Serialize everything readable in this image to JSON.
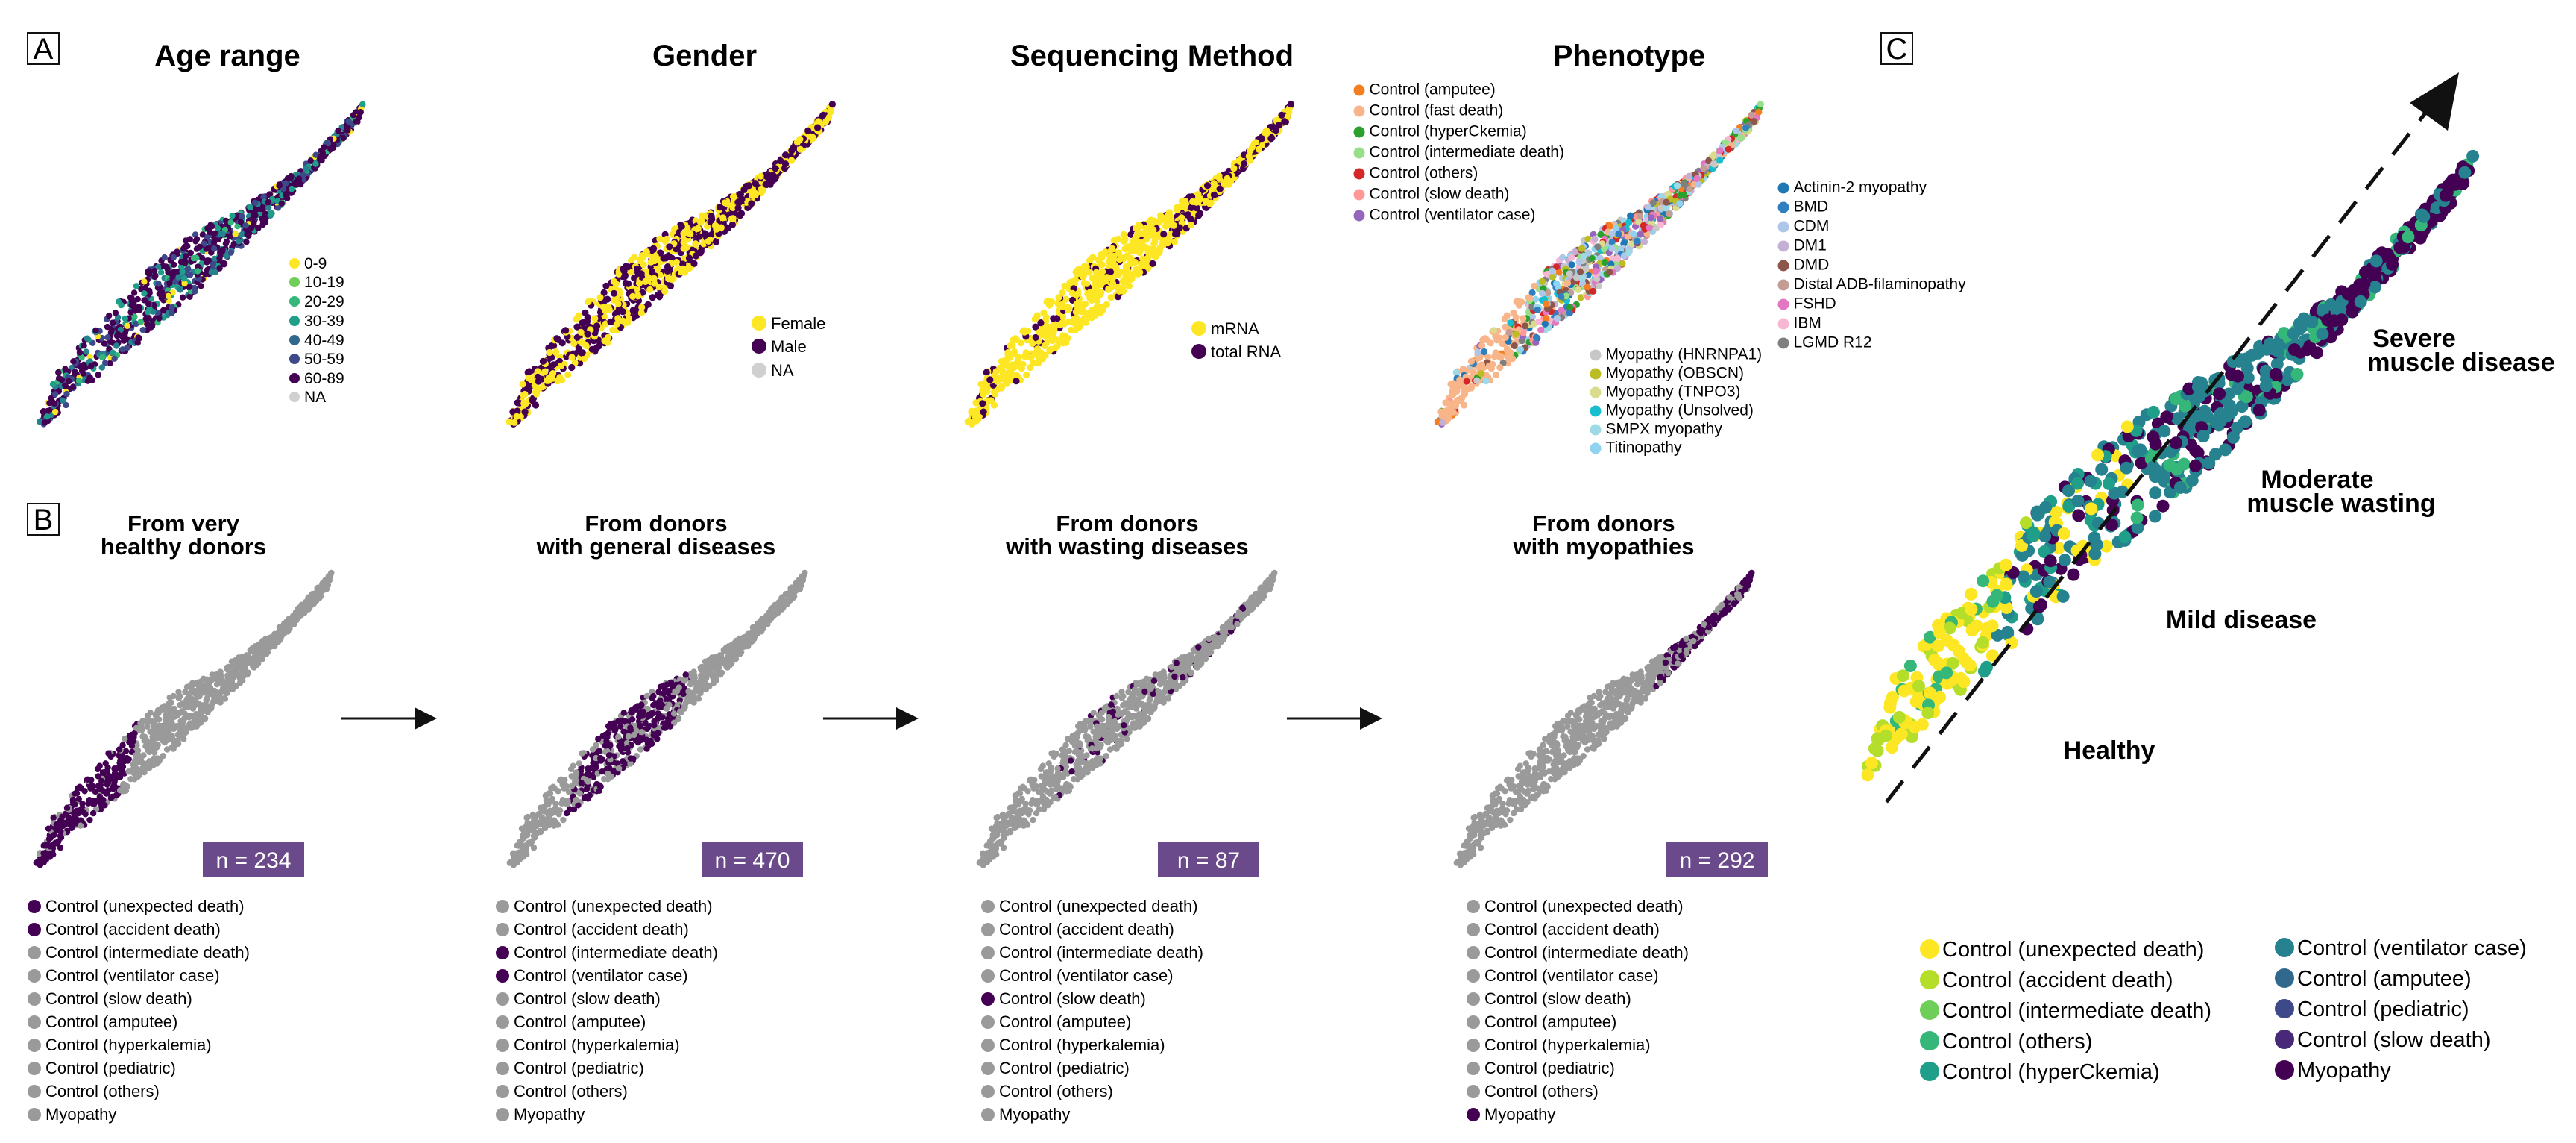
{
  "colors": {
    "viridis": [
      "#fde725",
      "#b5de2b",
      "#6ece58",
      "#35b779",
      "#1f9e89",
      "#26828e",
      "#31688e",
      "#3e4989",
      "#482878",
      "#440154"
    ],
    "gray": "#9a9a9a",
    "na": "#d0d0d0",
    "badge": "#6a4a8a",
    "black": "#111111",
    "yellow": "#fde725",
    "purple": "#440154",
    "phenotype": [
      "#f47f20",
      "#f9b58a",
      "#2ca02c",
      "#98df8a",
      "#d62728",
      "#ff9896",
      "#9467bd",
      "#1f77b4",
      "#2f7fc1",
      "#aec7e8",
      "#c5b0d5",
      "#8c564b",
      "#c49c94",
      "#e377c2",
      "#f7b6d2",
      "#7f7f7f",
      "#c7c7c7",
      "#bcbd22",
      "#dbdb8d",
      "#17becf",
      "#9edae5",
      "#8fd3f0"
    ]
  },
  "panel_a": {
    "letter": "A",
    "titles": {
      "age": "Age range",
      "gender": "Gender",
      "seq": "Sequencing Method",
      "pheno": "Phenotype"
    },
    "age_legend": [
      "0-9",
      "10-19",
      "20-29",
      "30-39",
      "40-49",
      "50-59",
      "60-89",
      "NA"
    ],
    "gender_legend": [
      "Female",
      "Male",
      "NA"
    ],
    "seq_legend": [
      "mRNA",
      "total RNA"
    ],
    "pheno_legend_a": [
      "Control (amputee)",
      "Control (fast death)",
      "Control (hyperCkemia)",
      "Control (intermediate death)",
      "Control (others)",
      "Control (slow death)",
      "Control (ventilator case)"
    ],
    "pheno_legend_b": [
      "Actinin-2 myopathy",
      "BMD",
      "CDM",
      "DM1",
      "DMD",
      "Distal ADB-filaminopathy",
      "FSHD",
      "IBM",
      "LGMD R12"
    ],
    "pheno_legend_c": [
      "Myopathy (HNRNPA1)",
      "Myopathy (OBSCN)",
      "Myopathy (TNPO3)",
      "Myopathy (Unsolved)",
      "SMPX myopathy",
      "Titinopathy"
    ]
  },
  "panel_b": {
    "letter": "B",
    "items": [
      {
        "title1": "From very",
        "title2": "healthy donors",
        "n": "n = 234",
        "active": [
          0,
          1
        ]
      },
      {
        "title1": "From donors",
        "title2": "with general diseases",
        "n": "n = 470",
        "active": [
          2,
          3
        ]
      },
      {
        "title1": "From donors",
        "title2": "with wasting diseases",
        "n": "n = 87",
        "active": [
          4
        ]
      },
      {
        "title1": "From donors",
        "title2": "with myopathies",
        "n": "n = 292",
        "active": [
          9
        ]
      }
    ],
    "legends": [
      [
        "Control (unexpected death)",
        "Control (accident death)",
        "Control (intermediate death)",
        "Control (ventilator case)",
        "Control (slow death)",
        "Control (amputee)",
        "Control (hyperkalemia)",
        "Control (pediatric)",
        "Control (others)",
        "Myopathy"
      ],
      [
        "Control (unexpected death)",
        "Control (accident death)",
        "Control (intermediate death)",
        "Control (ventilator case)",
        "Control (slow death)",
        "Control (amputee)",
        "Control (hyperkalemia)",
        "Control (pediatric)",
        "Control (others)",
        "Myopathy"
      ],
      [
        "Control (unexpected death)",
        "Control (accident death)",
        "Control (intermediate death)",
        "Control (ventilator case)",
        "Control (slow death)",
        "Control (amputee)",
        "Control (hyperkalemia)",
        "Control (pediatric)",
        "Control (others)",
        "Myopathy"
      ],
      [
        "Control (unexpected death)",
        "Control (accident death)",
        "Control (intermediate death)",
        "Control (ventilator case)",
        "Control (slow death)",
        "Control (amputee)",
        "Control (hyperkalemia)",
        "Control (pediatric)",
        "Control (others)",
        "Myopathy"
      ]
    ]
  },
  "panel_c": {
    "letter": "C",
    "stages": {
      "severe1": "Severe",
      "severe2": "muscle disease",
      "moderate1": "Moderate",
      "moderate2": "muscle wasting",
      "mild": "Mild disease",
      "healthy": "Healthy"
    },
    "legend_left": [
      "Control (unexpected death)",
      "Control (accident death)",
      "Control (intermediate death)",
      "Control (others)",
      "Control (hyperCkemia)"
    ],
    "legend_right": [
      "Control (ventilator case)",
      "Control (amputee)",
      "Control (pediatric)",
      "Control (slow death)",
      "Myopathy"
    ]
  }
}
